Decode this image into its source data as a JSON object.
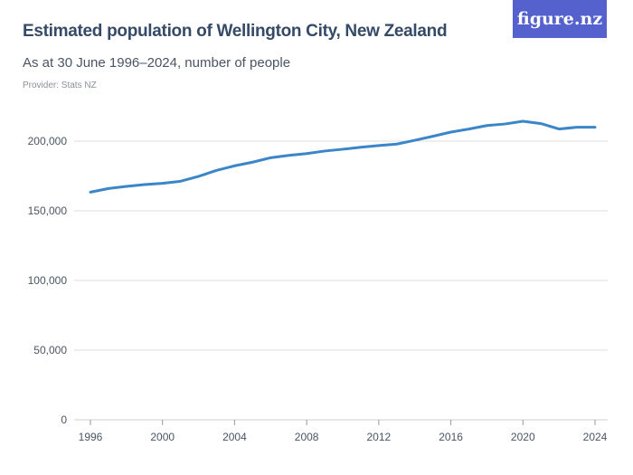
{
  "title": "Estimated population of Wellington City, New Zealand",
  "subtitle": "As at 30 June 1996–2024, number of people",
  "provider": "Provider: Stats NZ",
  "logo": "figure.nz",
  "colors": {
    "line": "#3a86c8",
    "logo_bg": "#5561cc",
    "grid": "#dddddd"
  },
  "chart_data": {
    "type": "line",
    "x": [
      1996,
      1997,
      1998,
      1999,
      2000,
      2001,
      2002,
      2003,
      2004,
      2005,
      2006,
      2007,
      2008,
      2009,
      2010,
      2011,
      2012,
      2013,
      2014,
      2015,
      2016,
      2017,
      2018,
      2019,
      2020,
      2021,
      2022,
      2023,
      2024
    ],
    "values": [
      163400,
      166000,
      167500,
      168800,
      169700,
      171200,
      174700,
      179000,
      182300,
      184900,
      188100,
      189800,
      191100,
      192900,
      194200,
      195600,
      196800,
      197900,
      200600,
      203500,
      206500,
      208700,
      211200,
      212300,
      214300,
      212600,
      208700,
      210000,
      210000
    ],
    "ylim": [
      0,
      200000
    ],
    "yticks": [
      "0",
      "50,000",
      "100,000",
      "150,000",
      "200,000"
    ],
    "ytick_values": [
      0,
      50000,
      100000,
      150000,
      200000
    ],
    "xticks": [
      "1996",
      "2000",
      "2004",
      "2008",
      "2012",
      "2016",
      "2020",
      "2024"
    ],
    "xtick_values": [
      1996,
      2000,
      2004,
      2008,
      2012,
      2016,
      2020,
      2024
    ],
    "grid": true
  }
}
